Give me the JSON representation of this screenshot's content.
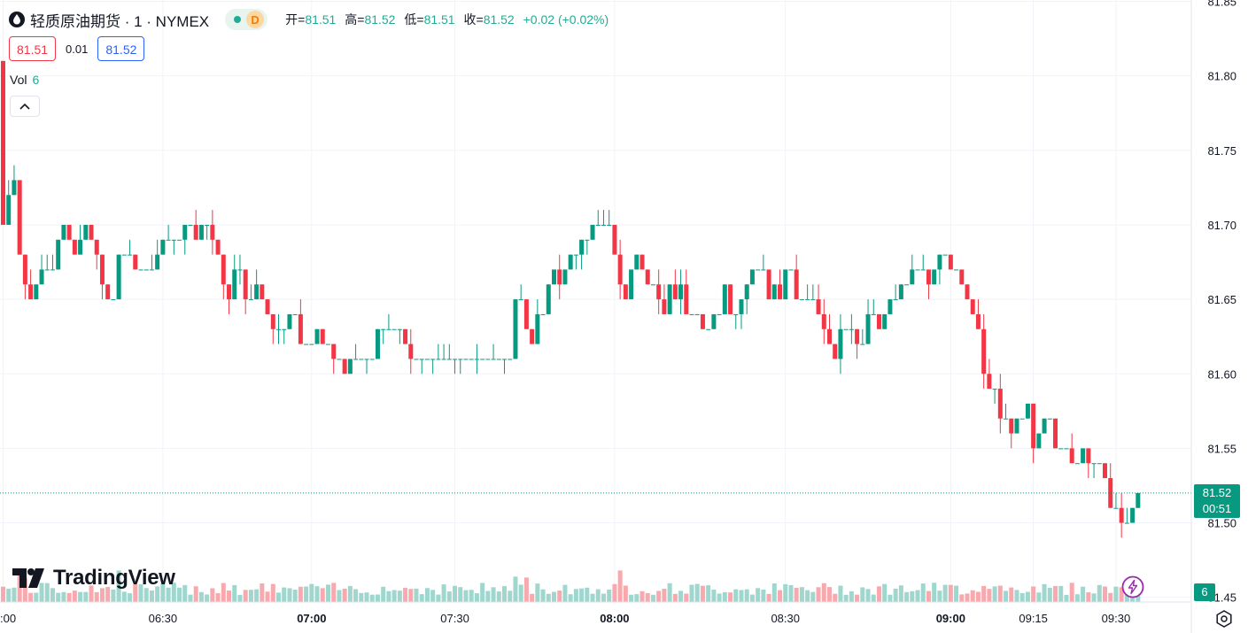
{
  "header": {
    "symbol": "轻质原油期货 · 1 · NYMEX",
    "badge_letter": "D",
    "open_label": "开=",
    "open": "81.51",
    "high_label": "高=",
    "high": "81.52",
    "low_label": "低=",
    "low": "81.51",
    "close_label": "收=",
    "close": "81.52",
    "change": "+0.02 (+0.02%)"
  },
  "quote": {
    "bid": "81.51",
    "spread": "0.01",
    "ask": "81.52"
  },
  "volume_legend": {
    "label": "Vol",
    "value": "6"
  },
  "brand": "TradingView",
  "last_price_tag": {
    "price": "81.52",
    "countdown": "00:51"
  },
  "volume_tag": "6",
  "colors": {
    "up": "#089981",
    "down": "#f23645",
    "up_vol": "#9fd6cd",
    "down_vol": "#f7a9ae",
    "grid": "#f0f3fa",
    "price_line": "#089981"
  },
  "chart_data": {
    "type": "candlestick",
    "interval_minutes": 1,
    "y_axis": {
      "ticks": [
        "81.85",
        "81.80",
        "81.75",
        "81.70",
        "81.65",
        "81.60",
        "81.55",
        "81.50",
        "81.45"
      ],
      "range": [
        81.445,
        81.85
      ]
    },
    "x_axis": {
      "ticks": [
        ":00",
        "06:30",
        "07:00",
        "07:30",
        "08:00",
        "08:30",
        "09:00",
        "09:15",
        "09:30"
      ]
    },
    "last_price": 81.52,
    "candles_close": [
      81.7,
      81.72,
      81.73,
      81.68,
      81.66,
      81.65,
      81.66,
      81.67,
      81.67,
      81.67,
      81.69,
      81.7,
      81.69,
      81.68,
      81.69,
      81.7,
      81.69,
      81.68,
      81.66,
      81.65,
      81.65,
      81.68,
      81.68,
      81.68,
      81.67,
      81.67,
      81.67,
      81.67,
      81.68,
      81.69,
      81.69,
      81.69,
      81.69,
      81.7,
      81.7,
      81.69,
      81.7,
      81.7,
      81.69,
      81.68,
      81.66,
      81.65,
      81.67,
      81.67,
      81.65,
      81.65,
      81.66,
      81.65,
      81.64,
      81.63,
      81.63,
      81.63,
      81.64,
      81.64,
      81.62,
      81.62,
      81.62,
      81.63,
      81.62,
      81.62,
      81.61,
      81.61,
      81.6,
      81.61,
      81.61,
      81.61,
      81.61,
      81.61,
      81.63,
      81.63,
      81.63,
      81.63,
      81.63,
      81.62,
      81.61,
      81.61,
      81.61,
      81.61,
      81.61,
      81.61,
      81.61,
      81.61,
      81.61,
      81.61,
      81.61,
      81.61,
      81.61,
      81.61,
      81.61,
      81.61,
      81.61,
      81.61,
      81.61,
      81.65,
      81.65,
      81.63,
      81.62,
      81.64,
      81.64,
      81.66,
      81.67,
      81.66,
      81.67,
      81.68,
      81.68,
      81.69,
      81.69,
      81.7,
      81.7,
      81.7,
      81.7,
      81.68,
      81.66,
      81.65,
      81.67,
      81.68,
      81.67,
      81.66,
      81.66,
      81.65,
      81.64,
      81.66,
      81.65,
      81.66,
      81.64,
      81.64,
      81.64,
      81.63,
      81.63,
      81.64,
      81.64,
      81.66,
      81.64,
      81.64,
      81.65,
      81.66,
      81.67,
      81.67,
      81.67,
      81.65,
      81.66,
      81.65,
      81.67,
      81.67,
      81.65,
      81.65,
      81.65,
      81.65,
      81.64,
      81.63,
      81.62,
      81.61,
      81.63,
      81.63,
      81.63,
      81.62,
      81.62,
      81.64,
      81.64,
      81.63,
      81.64,
      81.65,
      81.65,
      81.66,
      81.66,
      81.67,
      81.67,
      81.67,
      81.66,
      81.67,
      81.68,
      81.68,
      81.67,
      81.67,
      81.66,
      81.65,
      81.64,
      81.63,
      81.6,
      81.59,
      81.59,
      81.57,
      81.57,
      81.56,
      81.57,
      81.57,
      81.58,
      81.55,
      81.56,
      81.57,
      81.57,
      81.55,
      81.55,
      81.55,
      81.54,
      81.54,
      81.55,
      81.54,
      81.54,
      81.54,
      81.53,
      81.51,
      81.51,
      81.5,
      81.5,
      81.51,
      81.52
    ]
  }
}
